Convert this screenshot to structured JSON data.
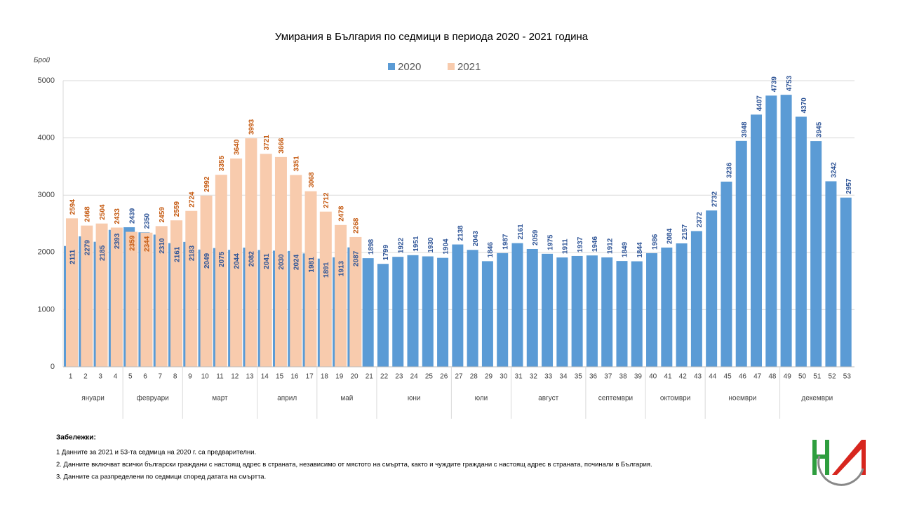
{
  "chart_data": {
    "type": "bar",
    "title": "Умирания в България по седмици в периода 2020 - 2021 година",
    "y_axis_label": "Брой",
    "categories": [
      "1",
      "2",
      "3",
      "4",
      "5",
      "6",
      "7",
      "8",
      "9",
      "10",
      "11",
      "12",
      "13",
      "14",
      "15",
      "16",
      "17",
      "18",
      "19",
      "20",
      "21",
      "22",
      "23",
      "24",
      "25",
      "26",
      "27",
      "28",
      "29",
      "30",
      "31",
      "32",
      "33",
      "34",
      "35",
      "36",
      "37",
      "38",
      "39",
      "40",
      "41",
      "42",
      "43",
      "44",
      "45",
      "46",
      "47",
      "48",
      "49",
      "50",
      "51",
      "52",
      "53"
    ],
    "months": [
      {
        "name": "януари",
        "span": 4
      },
      {
        "name": "февруари",
        "span": 4
      },
      {
        "name": "март",
        "span": 5
      },
      {
        "name": "април",
        "span": 4
      },
      {
        "name": "май",
        "span": 4
      },
      {
        "name": "юни",
        "span": 5
      },
      {
        "name": "юли",
        "span": 4
      },
      {
        "name": "август",
        "span": 5
      },
      {
        "name": "септември",
        "span": 4
      },
      {
        "name": "октомври",
        "span": 4
      },
      {
        "name": "ноември",
        "span": 5
      },
      {
        "name": "декември",
        "span": 5
      }
    ],
    "series": [
      {
        "name": "2020",
        "color": "#5b9bd5",
        "label_color": "#2f5597",
        "values": [
          2111,
          2279,
          2185,
          2393,
          2439,
          2350,
          2310,
          2161,
          2183,
          2049,
          2075,
          2044,
          2082,
          2041,
          2030,
          2024,
          1981,
          1891,
          1913,
          2087,
          1898,
          1799,
          1922,
          1951,
          1930,
          1904,
          2138,
          2043,
          1846,
          1987,
          2161,
          2059,
          1975,
          1911,
          1937,
          1946,
          1912,
          1849,
          1844,
          1986,
          2084,
          2157,
          2372,
          2732,
          3236,
          3948,
          4407,
          4739,
          4753,
          4370,
          3945,
          3242,
          2957
        ]
      },
      {
        "name": "2021",
        "color": "#f8cbad",
        "label_color": "#c55a11",
        "values": [
          2594,
          2468,
          2504,
          2433,
          2359,
          2344,
          2459,
          2559,
          2724,
          2992,
          3355,
          3640,
          3993,
          3721,
          3666,
          3351,
          3068,
          2712,
          2478,
          2268,
          null,
          null,
          null,
          null,
          null,
          null,
          null,
          null,
          null,
          null,
          null,
          null,
          null,
          null,
          null,
          null,
          null,
          null,
          null,
          null,
          null,
          null,
          null,
          null,
          null,
          null,
          null,
          null,
          null,
          null,
          null,
          null,
          null
        ]
      }
    ],
    "ylim": [
      0,
      5000
    ],
    "yticks": [
      0,
      1000,
      2000,
      3000,
      4000,
      5000
    ],
    "grid": true,
    "legend": "top",
    "notes_title": "Забележки:",
    "notes": [
      "1   Данните за 2021 и 53-та седмица на 2020 г. са предварителни.",
      "2. Данните включват всички български граждани с настоящ адрес в страната, независимо от мястото на смъртта, както и чуждите граждани с настоящ адрес в страната, починали в България.",
      "3. Данните са разпределени по седмици според  датата на смъртта."
    ]
  }
}
